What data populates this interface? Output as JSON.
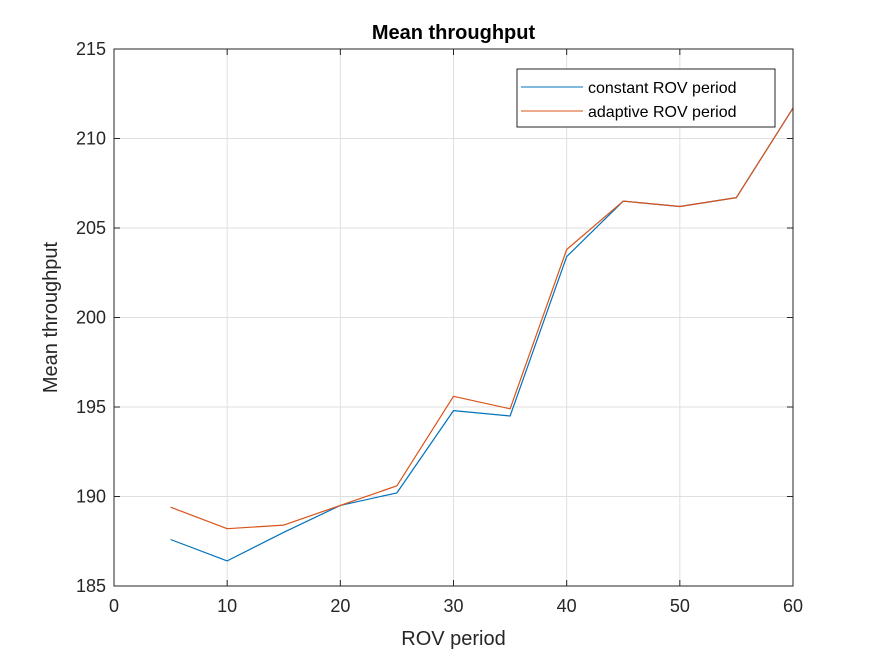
{
  "chart_data": {
    "type": "line",
    "title": "Mean throughput",
    "xlabel": "ROV period",
    "ylabel": "Mean throughput",
    "xlim": [
      0,
      60
    ],
    "ylim": [
      185,
      215
    ],
    "xticks": [
      0,
      10,
      20,
      30,
      40,
      50,
      60
    ],
    "yticks": [
      185,
      190,
      195,
      200,
      205,
      210,
      215
    ],
    "grid": true,
    "legend_position": "top-right",
    "x": [
      5,
      10,
      15,
      20,
      25,
      30,
      35,
      40,
      45,
      50,
      55,
      60
    ],
    "series": [
      {
        "name": "constant ROV period",
        "color": "#0072BD",
        "values": [
          187.6,
          186.4,
          188.0,
          189.5,
          190.2,
          194.8,
          194.5,
          203.4,
          206.5,
          206.2,
          206.7,
          211.7
        ]
      },
      {
        "name": "adaptive ROV period",
        "color": "#D95319",
        "values": [
          189.4,
          188.2,
          188.4,
          189.5,
          190.6,
          195.6,
          194.9,
          203.8,
          206.5,
          206.2,
          206.7,
          211.7
        ]
      }
    ]
  }
}
